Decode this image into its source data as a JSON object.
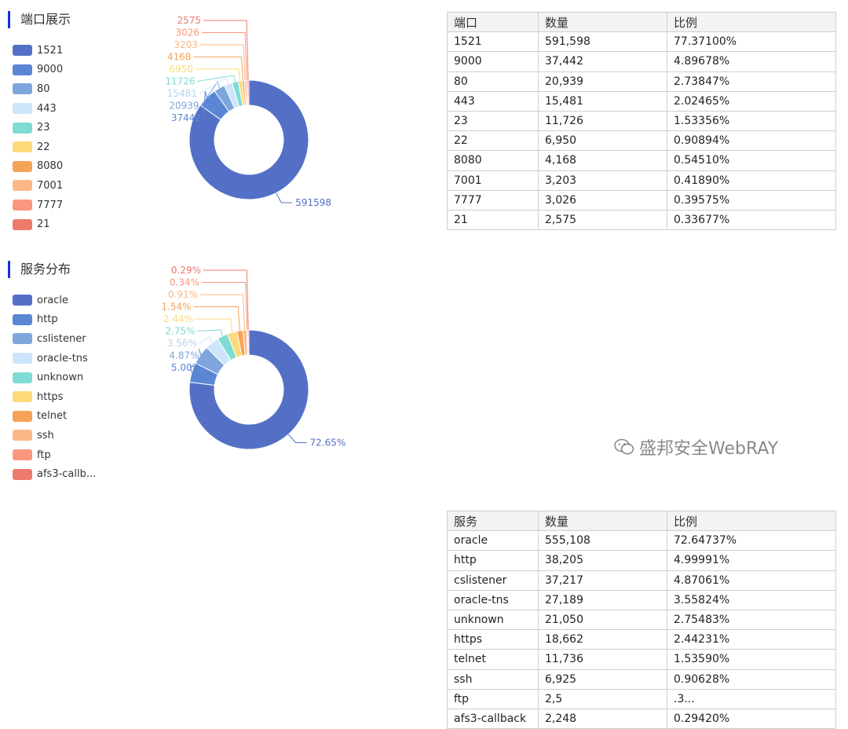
{
  "colors": [
    "#5470c6",
    "#5b86d6",
    "#7ea6dc",
    "#cce5fa",
    "#7fdbd3",
    "#fdda7a",
    "#f6a35a",
    "#fbb886",
    "#fb977f",
    "#ee7a6c"
  ],
  "ports": {
    "title": "端口展示",
    "table_headers": [
      "端口",
      "数量",
      "比例"
    ],
    "rows": [
      [
        "1521",
        "591,598",
        "77.37100%"
      ],
      [
        "9000",
        "37,442",
        "4.89678%"
      ],
      [
        "80",
        "20,939",
        "2.73847%"
      ],
      [
        "443",
        "15,481",
        "2.02465%"
      ],
      [
        "23",
        "11,726",
        "1.53356%"
      ],
      [
        "22",
        "6,950",
        "0.90894%"
      ],
      [
        "8080",
        "4,168",
        "0.54510%"
      ],
      [
        "7001",
        "3,203",
        "0.41890%"
      ],
      [
        "7777",
        "3,026",
        "0.39575%"
      ],
      [
        "21",
        "2,575",
        "0.33677%"
      ]
    ]
  },
  "services": {
    "title": "服务分布",
    "table_headers": [
      "服务",
      "数量",
      "比例"
    ],
    "rows": [
      [
        "oracle",
        "555,108",
        "72.64737%"
      ],
      [
        "http",
        "38,205",
        "4.99991%"
      ],
      [
        "cslistener",
        "37,217",
        "4.87061%"
      ],
      [
        "oracle-tns",
        "27,189",
        "3.55824%"
      ],
      [
        "unknown",
        "21,050",
        "2.75483%"
      ],
      [
        "https",
        "18,662",
        "2.44231%"
      ],
      [
        "telnet",
        "11,736",
        "1.53590%"
      ],
      [
        "ssh",
        "6,925",
        "0.90628%"
      ],
      [
        "ftp",
        "2,5",
        ".3..."
      ],
      [
        "afs3-callback",
        "2,248",
        "0.29420%"
      ]
    ]
  },
  "chart_data": [
    {
      "type": "pie",
      "donut": true,
      "title": "端口展示",
      "categories": [
        "1521",
        "9000",
        "80",
        "443",
        "23",
        "22",
        "8080",
        "7001",
        "7777",
        "21"
      ],
      "values": [
        591598,
        37442,
        20939,
        15481,
        11726,
        6950,
        4168,
        3203,
        3026,
        2575
      ],
      "labels": [
        "591598",
        "37442",
        "20939",
        "15481",
        "11726",
        "6950",
        "4168",
        "3203",
        "3026",
        "2575"
      ],
      "legend": "left"
    },
    {
      "type": "pie",
      "donut": true,
      "title": "服务分布",
      "categories": [
        "oracle",
        "http",
        "cslistener",
        "oracle-tns",
        "unknown",
        "https",
        "telnet",
        "ssh",
        "ftp",
        "afs3-callb..."
      ],
      "values": [
        72.65,
        5.0,
        4.87,
        3.56,
        2.75,
        2.44,
        1.54,
        0.91,
        0.34,
        0.29
      ],
      "labels": [
        "72.65%",
        "5.00%",
        "4.87%",
        "3.56%",
        "2.75%",
        "2.44%",
        "1.54%",
        "0.91%",
        "0.34%",
        "0.29%"
      ],
      "legend": "left"
    }
  ],
  "watermark": "盛邦安全WebRAY"
}
